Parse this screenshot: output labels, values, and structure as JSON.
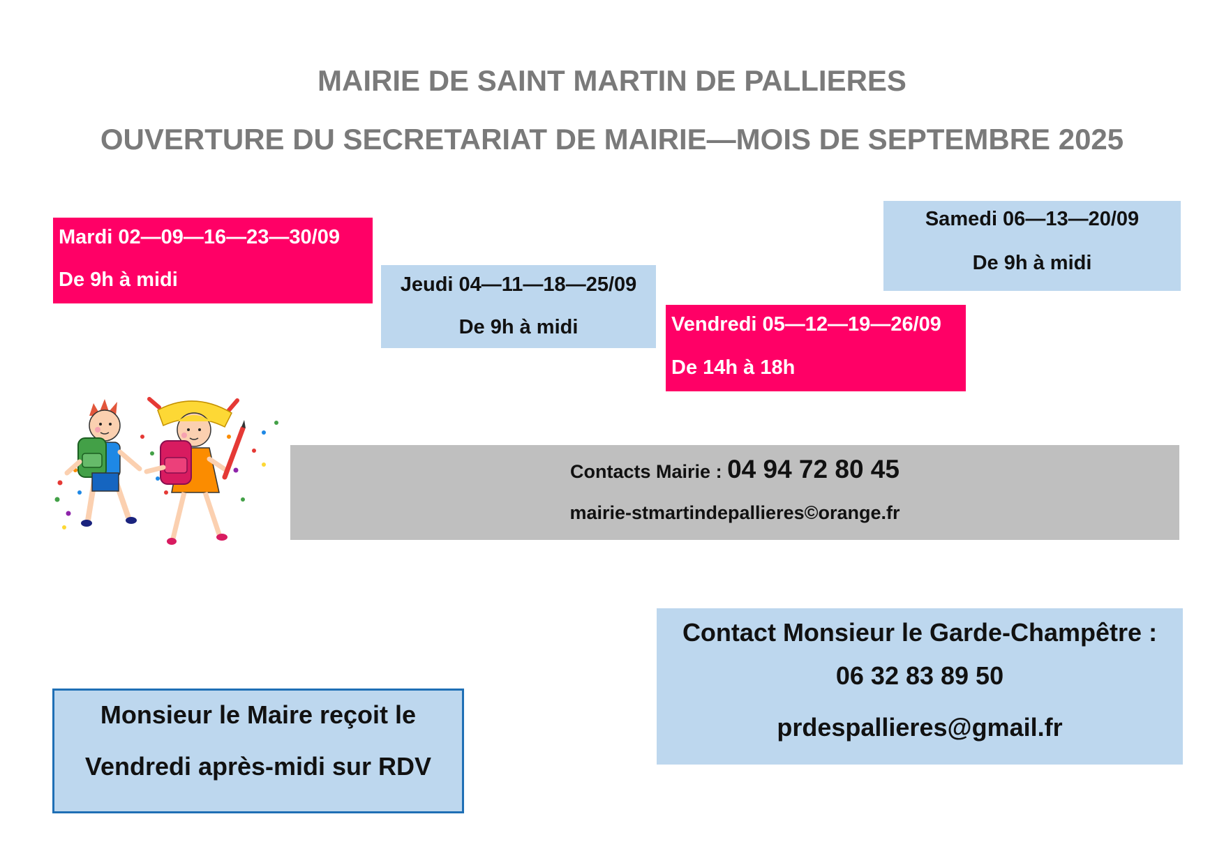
{
  "header": {
    "title": "MAIRIE DE SAINT MARTIN  DE PALLIERES",
    "subtitle": "OUVERTURE DU SECRETARIAT DE MAIRIE—MOIS DE SEPTEMBRE 2025"
  },
  "schedule": [
    {
      "day": "Mardi 02—09—16—23—30/09",
      "hours": "De 9h à midi",
      "color": "#ff0066"
    },
    {
      "day": "Jeudi 04—11—18—25/09",
      "hours": "De 9h à midi",
      "color": "#bdd7ee"
    },
    {
      "day": "Vendredi 05—12—19—26/09",
      "hours": "De 14h à 18h",
      "color": "#ff0066"
    },
    {
      "day": "Samedi 06—13—20/09",
      "hours": "De 9h à midi",
      "color": "#bdd7ee"
    }
  ],
  "contacts_mairie": {
    "label": "Contacts Mairie : ",
    "phone": "04 94 72 80 45",
    "email": "mairie-stmartindepallieres©orange.fr",
    "background": "#bfbfbf"
  },
  "garde_champetre": {
    "label": "Contact Monsieur le Garde-Champêtre :",
    "phone": "06 32 83 89 50",
    "email": "prdespallieres@gmail.fr",
    "background": "#bdd7ee"
  },
  "maire": {
    "line1": "Monsieur le Maire reçoit le",
    "line2": "Vendredi après-midi sur RDV",
    "background": "#bdd7ee",
    "border": "#1f6fb5"
  },
  "illustration": {
    "icon": "children-with-backpacks-icon"
  }
}
